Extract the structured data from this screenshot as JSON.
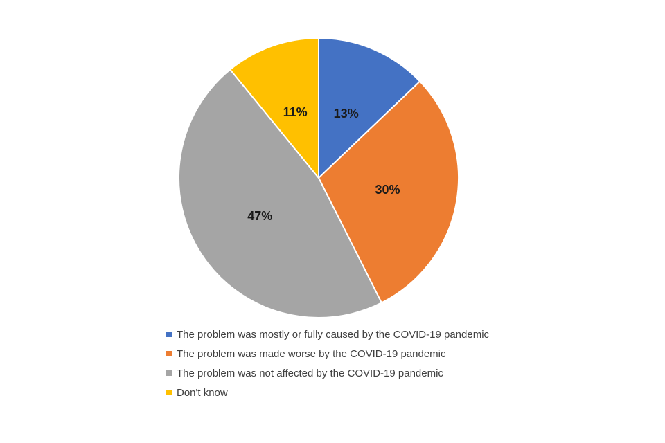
{
  "chart_data": {
    "type": "pie",
    "title": "",
    "start_angle": "top",
    "direction": "clockwise",
    "legend_position": "bottom-left",
    "data_labels": "percent-inside",
    "slices": [
      {
        "label": "The problem was mostly or fully caused by the COVID-19 pandemic",
        "value": 13,
        "display": "13%",
        "color": "#4472C4"
      },
      {
        "label": "The problem was made worse by the COVID-19 pandemic",
        "value": 30,
        "display": "30%",
        "color": "#ED7D31"
      },
      {
        "label": "The problem was not affected by the COVID-19 pandemic",
        "value": 47,
        "display": "47%",
        "color": "#A5A5A5"
      },
      {
        "label": "Don't know",
        "value": 11,
        "display": "11%",
        "color": "#FFC000"
      }
    ]
  }
}
